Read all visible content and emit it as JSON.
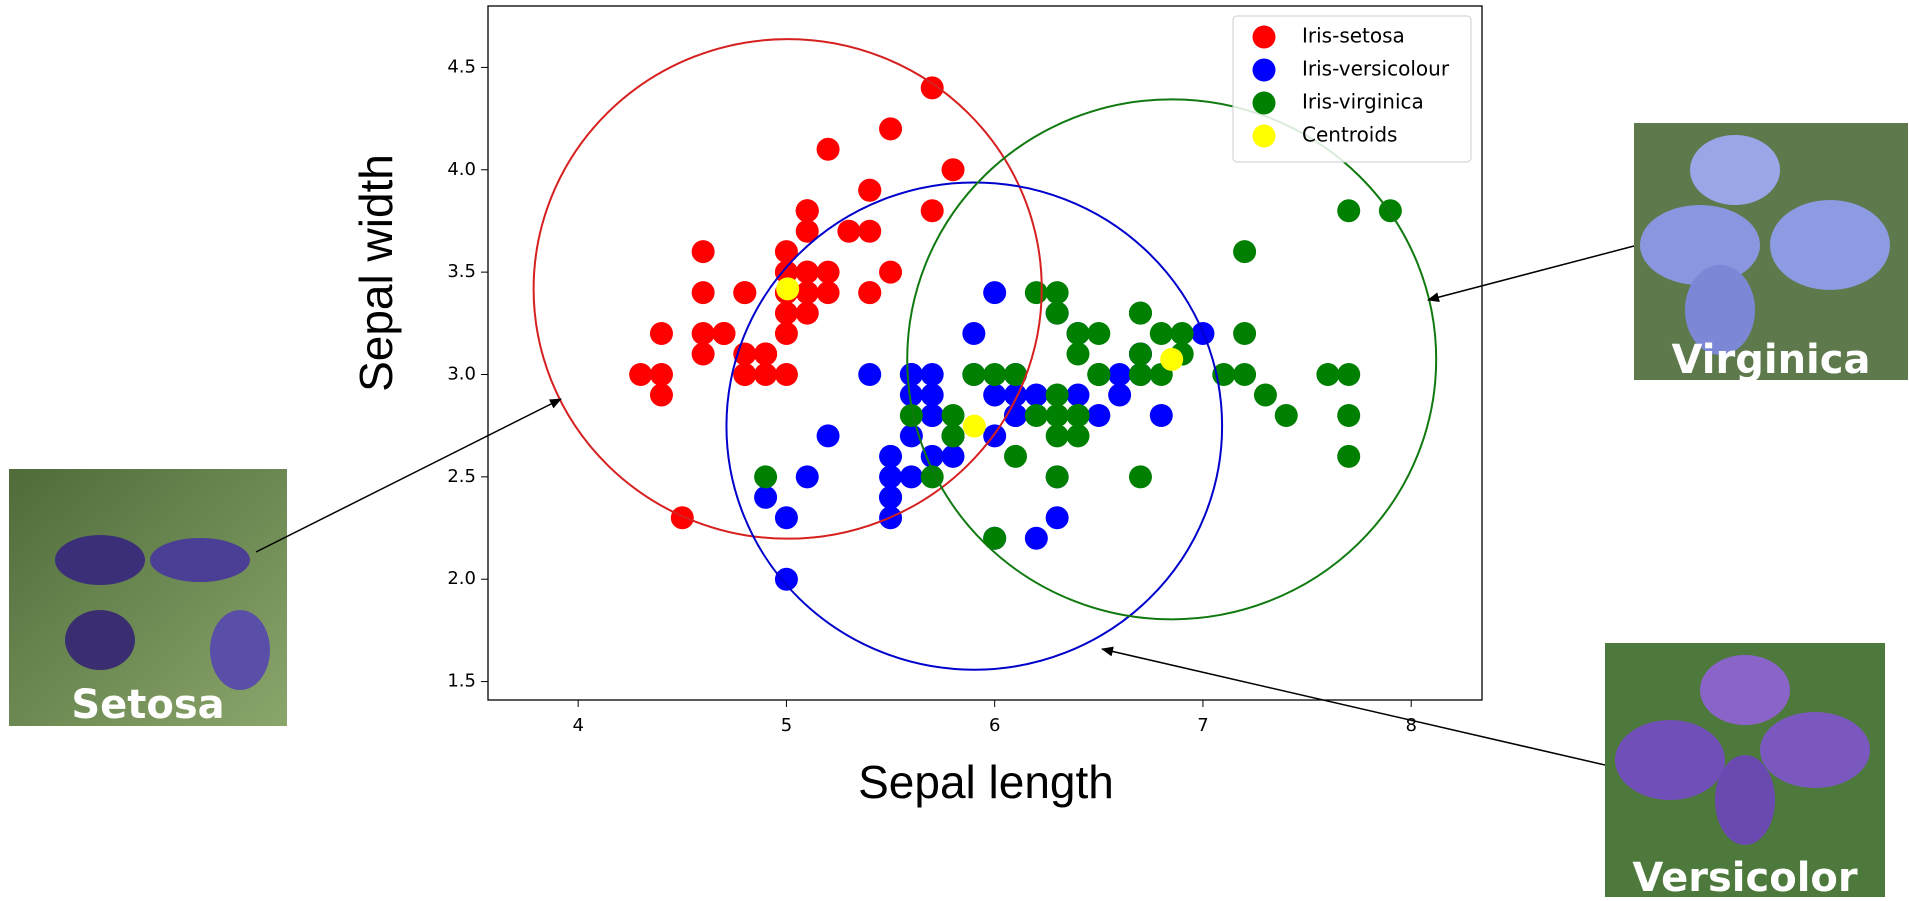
{
  "chart_data": {
    "type": "scatter",
    "xlabel": "Sepal length",
    "ylabel": "Sepal width",
    "xlim": [
      3.567,
      8.34
    ],
    "ylim": [
      1.41,
      4.8
    ],
    "xticks": [
      4,
      5,
      6,
      7,
      8
    ],
    "yticks": [
      1.5,
      {
        "value": 2,
        "label": "2.0"
      },
      2.5,
      {
        "value": 3,
        "label": "3.0"
      },
      3.5,
      {
        "value": 4,
        "label": "4.0"
      },
      4.5
    ],
    "legend": "upper right",
    "series": [
      {
        "name": "Iris-setosa",
        "color": "#ff0000",
        "x": [
          5.1,
          4.9,
          4.7,
          4.6,
          5.0,
          5.4,
          4.6,
          5.0,
          4.4,
          4.9,
          5.4,
          4.8,
          4.8,
          4.3,
          5.8,
          5.7,
          5.4,
          5.1,
          5.7,
          5.1,
          5.4,
          5.1,
          4.6,
          5.1,
          4.8,
          5.0,
          5.0,
          5.2,
          5.2,
          4.7,
          4.8,
          5.4,
          5.2,
          5.5,
          4.9,
          5.0,
          5.5,
          4.9,
          4.4,
          5.1,
          5.0,
          4.5,
          4.4,
          5.0,
          5.1,
          4.8,
          5.1,
          4.6,
          5.3,
          5.0
        ],
        "values": [
          3.5,
          3.0,
          3.2,
          3.1,
          3.6,
          3.9,
          3.4,
          3.4,
          2.9,
          3.1,
          3.7,
          3.4,
          3.0,
          3.0,
          4.0,
          4.4,
          3.9,
          3.5,
          3.8,
          3.8,
          3.4,
          3.7,
          3.6,
          3.3,
          3.4,
          3.0,
          3.4,
          3.5,
          3.4,
          3.2,
          3.1,
          3.4,
          4.1,
          4.2,
          3.1,
          3.2,
          3.5,
          3.1,
          3.0,
          3.4,
          3.5,
          2.3,
          3.2,
          3.5,
          3.8,
          3.0,
          3.8,
          3.2,
          3.7,
          3.3
        ]
      },
      {
        "name": "Iris-versicolour",
        "color": "#0000ff",
        "x": [
          7.0,
          6.4,
          6.9,
          5.5,
          6.5,
          5.7,
          6.3,
          4.9,
          6.6,
          5.2,
          5.0,
          5.9,
          6.0,
          6.1,
          5.6,
          6.7,
          5.6,
          5.8,
          6.2,
          5.6,
          5.9,
          6.1,
          6.3,
          6.1,
          6.4,
          6.6,
          6.8,
          6.7,
          6.0,
          5.7,
          5.5,
          5.5,
          5.8,
          6.0,
          5.4,
          6.0,
          6.7,
          6.3,
          5.6,
          5.5,
          5.5,
          6.1,
          5.8,
          5.0,
          5.6,
          5.7,
          5.7,
          6.2,
          5.1,
          5.7
        ],
        "values": [
          3.2,
          3.2,
          3.1,
          2.3,
          2.8,
          2.8,
          3.3,
          2.4,
          2.9,
          2.7,
          2.0,
          3.0,
          2.2,
          2.9,
          2.9,
          3.1,
          3.0,
          2.7,
          2.2,
          2.5,
          3.2,
          2.8,
          2.5,
          2.8,
          2.9,
          3.0,
          2.8,
          3.0,
          2.9,
          2.6,
          2.4,
          2.4,
          2.7,
          2.7,
          3.0,
          3.4,
          3.1,
          2.3,
          3.0,
          2.5,
          2.6,
          3.0,
          2.6,
          2.3,
          2.7,
          3.0,
          2.9,
          2.9,
          2.5,
          2.8
        ]
      },
      {
        "name": "Iris-virginica",
        "color": "#008000",
        "x": [
          6.3,
          5.8,
          7.1,
          6.3,
          6.5,
          7.6,
          4.9,
          7.3,
          6.7,
          7.2,
          6.5,
          6.4,
          6.8,
          5.7,
          5.8,
          6.4,
          6.5,
          7.7,
          7.7,
          6.0,
          6.9,
          5.6,
          7.7,
          6.3,
          6.7,
          7.2,
          6.2,
          6.1,
          6.4,
          7.2,
          7.4,
          7.9,
          6.4,
          6.3,
          6.1,
          7.7,
          6.3,
          6.4,
          6.0,
          6.9,
          6.7,
          6.9,
          5.8,
          6.8,
          6.7,
          6.7,
          6.3,
          6.5,
          6.2,
          5.9
        ],
        "values": [
          3.3,
          2.7,
          3.0,
          2.9,
          3.0,
          3.0,
          2.5,
          2.9,
          2.5,
          3.6,
          3.2,
          2.7,
          3.0,
          2.5,
          2.8,
          3.2,
          3.0,
          3.8,
          2.6,
          2.2,
          3.2,
          2.8,
          2.8,
          2.7,
          3.3,
          3.2,
          2.8,
          3.0,
          2.8,
          3.0,
          2.8,
          3.8,
          2.8,
          2.8,
          2.6,
          3.0,
          3.4,
          3.1,
          3.0,
          3.1,
          3.1,
          3.1,
          2.7,
          3.2,
          3.3,
          3.0,
          2.5,
          3.0,
          3.4,
          3.0
        ]
      },
      {
        "name": "Centroids",
        "color": "#ffff00",
        "x": [
          5.006,
          5.902,
          6.85
        ],
        "values": [
          3.418,
          2.748,
          3.074
        ]
      }
    ],
    "circles": [
      {
        "color": "#d62020",
        "center": [
          5.006,
          3.418
        ],
        "radius": 1.22
      },
      {
        "color": "#0000cc",
        "center": [
          5.902,
          2.748
        ],
        "radius": 1.19
      },
      {
        "color": "#107a10",
        "center": [
          6.85,
          3.074
        ],
        "radius": 1.27
      }
    ]
  },
  "photos": [
    {
      "label": "Setosa"
    },
    {
      "label": "Virginica"
    },
    {
      "label": "Versicolor"
    }
  ]
}
